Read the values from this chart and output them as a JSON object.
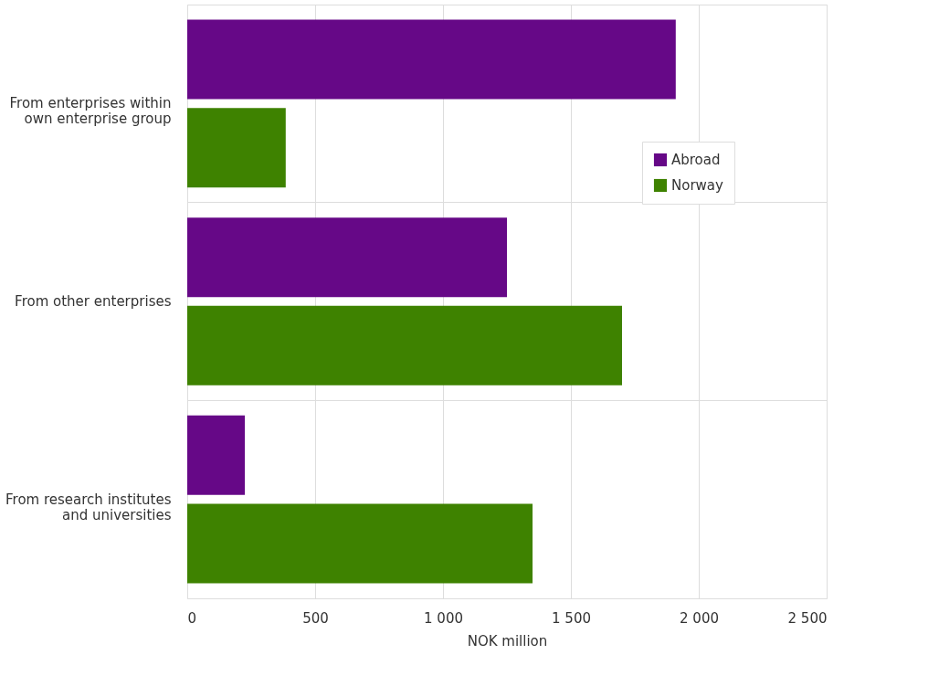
{
  "chart_data": {
    "type": "bar",
    "orientation": "horizontal",
    "xlabel": "NOK million",
    "categories": [
      "From enterprises within own enterprise group",
      "From other enterprises",
      "From research institutes and universities"
    ],
    "series": [
      {
        "name": "Abroad",
        "color": "#660887",
        "values": [
          1910,
          1250,
          225
        ]
      },
      {
        "name": "Norway",
        "color": "#3e8200",
        "values": [
          385,
          1700,
          1350
        ]
      }
    ],
    "xlim": [
      0,
      2500
    ],
    "xticks": [
      0,
      500,
      {
        "value": 1000,
        "label": "1 000"
      },
      {
        "value": 1500,
        "label": "1 500"
      },
      {
        "value": 2000,
        "label": "2 000"
      },
      {
        "value": 2500,
        "label": "2 500"
      }
    ],
    "grid": true,
    "legend": "right"
  }
}
